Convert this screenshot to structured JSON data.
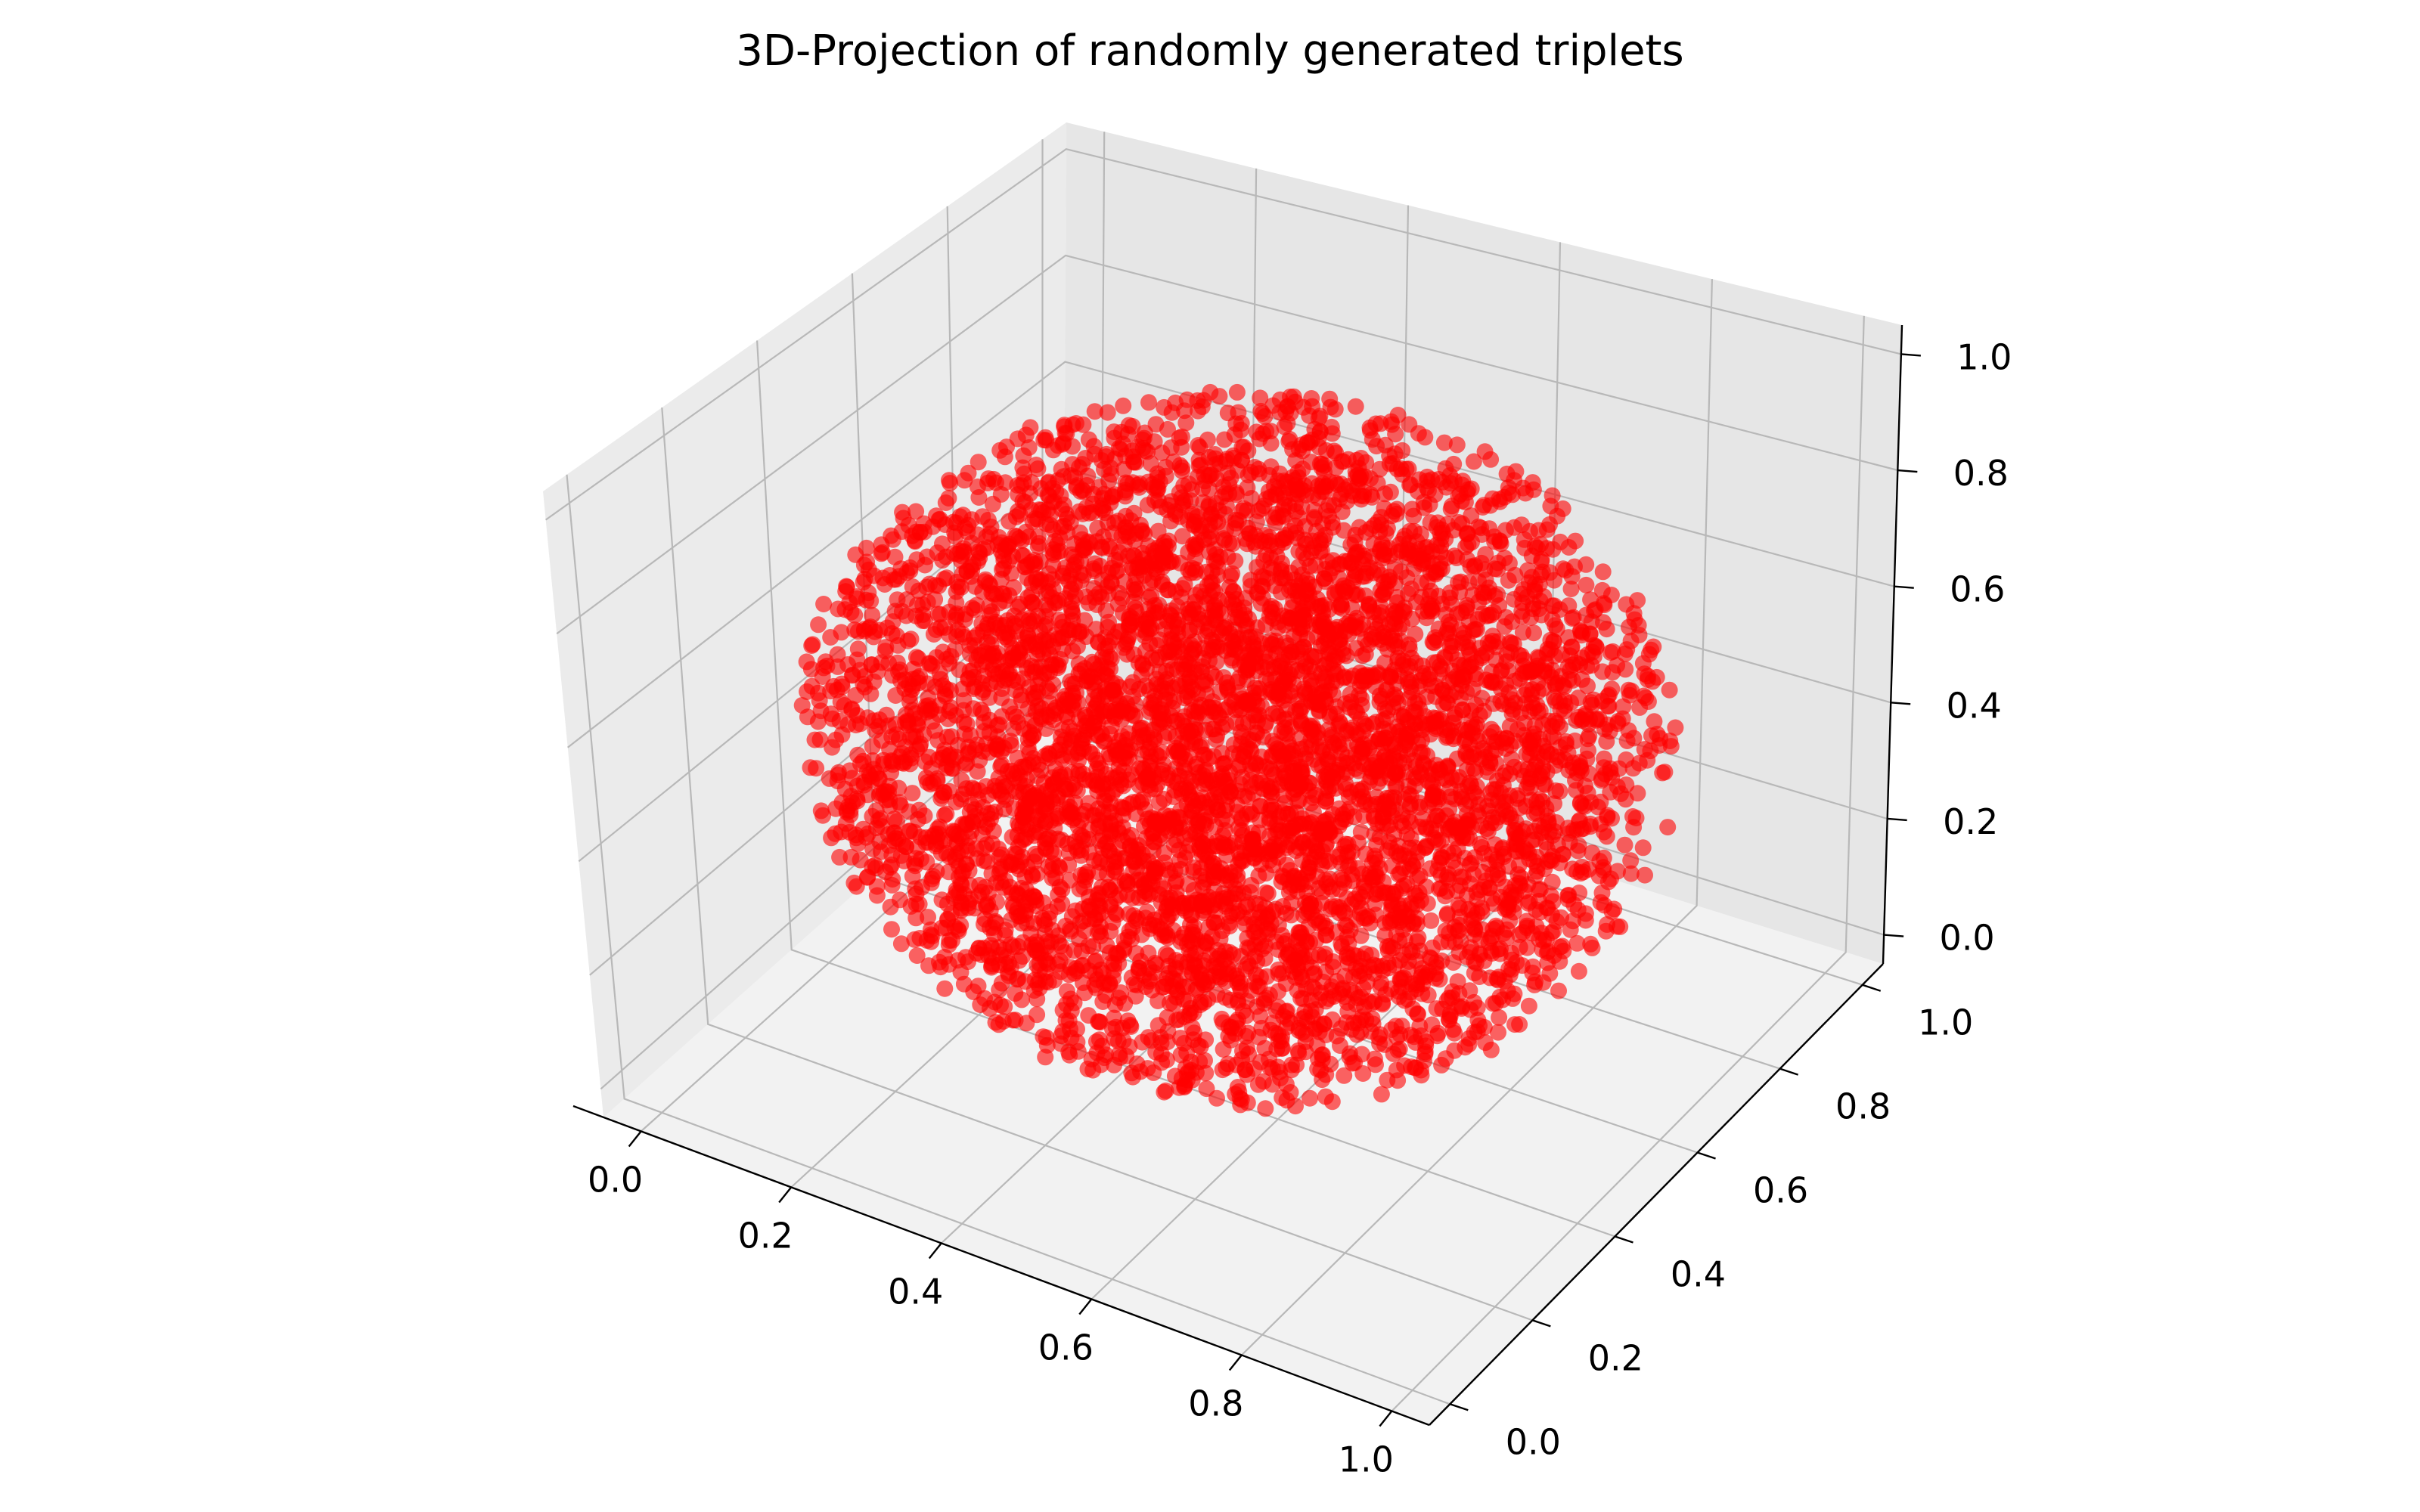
{
  "chart_data": {
    "type": "scatter",
    "projection": "3d",
    "title": "3D-Projection of randomly generated triplets",
    "xlabel": "",
    "ylabel": "",
    "zlabel": "",
    "xlim": [
      -0.05,
      1.05
    ],
    "ylim": [
      -0.05,
      1.05
    ],
    "zlim": [
      -0.05,
      1.05
    ],
    "x_ticks": [
      "0.0",
      "0.2",
      "0.4",
      "0.6",
      "0.8",
      "1.0"
    ],
    "y_ticks": [
      "0.0",
      "0.2",
      "0.4",
      "0.6",
      "0.8",
      "1.0"
    ],
    "z_ticks": [
      "0.0",
      "0.2",
      "0.4",
      "0.6",
      "0.8",
      "1.0"
    ],
    "grid": true,
    "marker_color": "#ff0000",
    "marker_alpha": 0.6,
    "pane_color": "#f2f2f2",
    "series": [
      {
        "distribution": "points uniformly distributed inside a sphere centered at (0.5, 0.5, 0.5), radius 0.5",
        "count": 6000,
        "center": [
          0.5,
          0.5,
          0.5
        ],
        "radius": 0.5
      }
    ]
  }
}
